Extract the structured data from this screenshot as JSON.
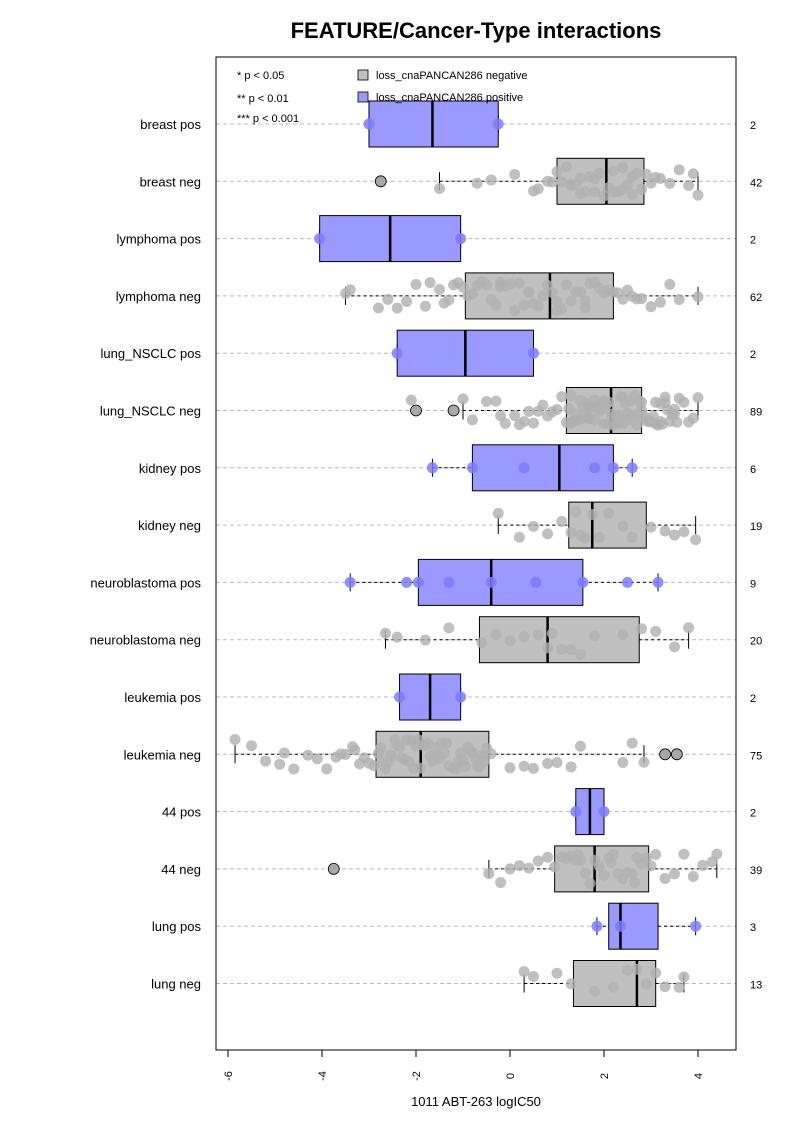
{
  "chart_data": {
    "type": "boxplot",
    "title": "FEATURE/Cancer-Type interactions",
    "xlabel": "1011 ABT-263 logIC50",
    "xlim": [
      -6.3,
      4.8
    ],
    "x_ticks": [
      "-6",
      "-4",
      "-2",
      "0",
      "2",
      "4"
    ],
    "x_tick_values": [
      -6,
      -4,
      -2,
      0,
      2,
      4
    ],
    "grid": "horizontal dashed",
    "significance_legend": [
      "* p < 0.05",
      "** p < 0.01",
      "*** p < 0.001"
    ],
    "legend": {
      "placement": "top",
      "entries": [
        {
          "label": "loss_cnaPANCAN286 negative",
          "color": "#c0c0c0"
        },
        {
          "label": "loss_cnaPANCAN286 positive",
          "color": "#9999ff"
        }
      ]
    },
    "colors": {
      "negative_box": "#c0c0c0",
      "positive_box": "#9999ff",
      "negative_point": "#b0b0b0",
      "positive_point": "#7b7bff",
      "grid": "#bbbbbb"
    },
    "groups": [
      {
        "label": "breast pos",
        "status": "pos",
        "n": "2",
        "q1": -3.0,
        "median": -1.65,
        "q3": -0.25,
        "wlo": -3.0,
        "whi": -0.25,
        "points": [
          -3.0,
          -0.25
        ],
        "outliers": []
      },
      {
        "label": "breast neg",
        "status": "neg",
        "n": "42",
        "q1": 1.0,
        "median": 2.05,
        "q3": 2.85,
        "wlo": -1.5,
        "whi": 4.0,
        "points": [
          -1.5,
          -0.7,
          -0.4,
          0.1,
          0.5,
          0.6,
          0.8,
          0.9,
          1.1,
          1.2,
          1.3,
          1.4,
          1.5,
          1.6,
          1.7,
          1.8,
          1.9,
          2.0,
          2.1,
          2.2,
          2.3,
          2.4,
          2.5,
          2.6,
          2.7,
          2.8,
          2.2,
          1.5,
          1.0,
          2.6,
          3.0,
          3.1,
          3.2,
          3.4,
          3.6,
          3.8,
          4.0,
          3.9,
          2.9,
          2.4,
          1.8,
          1.3
        ],
        "outliers": [
          -2.75
        ]
      },
      {
        "label": "lymphoma pos",
        "status": "pos",
        "n": "2",
        "q1": -4.05,
        "median": -2.55,
        "q3": -1.05,
        "wlo": -4.05,
        "whi": -1.05,
        "points": [
          -4.05,
          -1.05
        ],
        "outliers": []
      },
      {
        "label": "lymphoma neg",
        "status": "neg",
        "n": "62",
        "q1": -0.95,
        "median": 0.85,
        "q3": 2.2,
        "wlo": -3.5,
        "whi": 4.0,
        "points": [
          -3.5,
          -3.4,
          -2.8,
          -2.6,
          -2.4,
          -2.2,
          -2.0,
          -1.8,
          -1.7,
          -1.5,
          -1.4,
          -1.3,
          -1.2,
          -1.1,
          -1.0,
          -0.9,
          -0.8,
          -0.7,
          -0.6,
          -0.5,
          -0.4,
          -0.3,
          -0.2,
          -0.1,
          0.0,
          0.1,
          0.2,
          0.3,
          0.4,
          0.5,
          0.6,
          0.7,
          0.8,
          0.9,
          1.0,
          1.1,
          1.2,
          1.3,
          1.4,
          1.5,
          1.6,
          1.7,
          1.8,
          1.9,
          2.0,
          2.1,
          2.2,
          2.3,
          2.4,
          2.5,
          2.6,
          2.7,
          2.8,
          3.0,
          3.2,
          3.4,
          3.6,
          4.0,
          1.0,
          0.4,
          -0.2,
          1.6
        ],
        "outliers": []
      },
      {
        "label": "lung_NSCLC pos",
        "status": "pos",
        "n": "2",
        "q1": -2.4,
        "median": -0.95,
        "q3": 0.5,
        "wlo": -2.4,
        "whi": 0.5,
        "points": [
          -2.4,
          0.5
        ],
        "outliers": []
      },
      {
        "label": "lung_NSCLC neg",
        "status": "neg",
        "n": "89",
        "q1": 1.2,
        "median": 2.15,
        "q3": 2.8,
        "wlo": -1.0,
        "whi": 4.0,
        "points": [
          -2.1,
          -1.0,
          -0.8,
          -0.5,
          -0.3,
          -0.2,
          -0.1,
          0.1,
          0.2,
          0.3,
          0.4,
          0.5,
          0.6,
          0.7,
          0.8,
          0.9,
          1.0,
          1.1,
          1.2,
          1.3,
          1.4,
          1.5,
          1.6,
          1.7,
          1.8,
          1.9,
          2.0,
          2.1,
          2.2,
          2.3,
          2.4,
          2.5,
          2.6,
          2.7,
          2.8,
          2.9,
          3.0,
          3.1,
          3.2,
          3.3,
          3.4,
          3.5,
          3.6,
          3.7,
          3.8,
          3.9,
          4.0,
          1.25,
          1.35,
          1.45,
          1.55,
          1.65,
          1.75,
          1.85,
          1.95,
          2.05,
          2.15,
          2.25,
          2.35,
          2.45,
          2.55,
          2.65,
          2.75,
          2.85,
          2.95,
          3.05,
          3.15,
          3.25,
          3.35,
          3.45,
          3.55,
          1.3,
          1.5,
          1.7,
          1.9,
          2.1,
          2.3,
          2.5,
          2.7,
          2.9,
          3.1,
          3.3,
          3.5,
          1.6,
          2.0,
          2.4,
          2.8,
          3.2,
          1.8
        ],
        "outliers": [
          -2.0,
          -1.2
        ]
      },
      {
        "label": "kidney pos",
        "status": "pos",
        "n": "6",
        "q1": -0.8,
        "median": 1.05,
        "q3": 2.2,
        "wlo": -1.65,
        "whi": 2.6,
        "points": [
          -1.65,
          -0.8,
          0.3,
          1.8,
          2.2,
          2.6
        ],
        "outliers": []
      },
      {
        "label": "kidney neg",
        "status": "neg",
        "n": "19",
        "q1": 1.25,
        "median": 1.75,
        "q3": 2.9,
        "wlo": -0.25,
        "whi": 3.95,
        "points": [
          -0.25,
          0.2,
          0.5,
          0.8,
          1.1,
          1.3,
          1.4,
          1.5,
          1.6,
          1.75,
          1.9,
          2.1,
          2.4,
          2.6,
          3.0,
          3.3,
          3.5,
          3.7,
          3.95
        ],
        "outliers": []
      },
      {
        "label": "neuroblastoma pos",
        "status": "pos",
        "n": "9",
        "q1": -1.95,
        "median": -0.4,
        "q3": 1.55,
        "wlo": -3.4,
        "whi": 3.15,
        "points": [
          -3.4,
          -2.2,
          -1.95,
          -1.3,
          -0.4,
          0.55,
          1.55,
          2.5,
          3.15
        ],
        "outliers": []
      },
      {
        "label": "neuroblastoma neg",
        "status": "neg",
        "n": "20",
        "q1": -0.65,
        "median": 0.8,
        "q3": 2.75,
        "wlo": -2.65,
        "whi": 3.8,
        "points": [
          -2.65,
          -2.4,
          -1.8,
          -1.3,
          -0.6,
          -0.3,
          0.0,
          0.3,
          0.6,
          0.8,
          0.9,
          1.1,
          1.3,
          1.5,
          1.8,
          2.4,
          2.8,
          3.1,
          3.5,
          3.8
        ],
        "outliers": []
      },
      {
        "label": "leukemia pos",
        "status": "pos",
        "n": "2",
        "q1": -2.35,
        "median": -1.7,
        "q3": -1.05,
        "wlo": -2.35,
        "whi": -1.05,
        "points": [
          -2.35,
          -1.05
        ],
        "outliers": []
      },
      {
        "label": "leukemia neg",
        "status": "neg",
        "n": "75",
        "q1": -2.85,
        "median": -1.9,
        "q3": -0.45,
        "wlo": -5.85,
        "whi": 2.85,
        "points": [
          -5.85,
          -5.5,
          -5.2,
          -4.9,
          -4.6,
          -4.3,
          -4.1,
          -3.9,
          -3.7,
          -3.5,
          -3.3,
          -3.2,
          -3.1,
          -3.0,
          -2.9,
          -2.8,
          -2.7,
          -2.6,
          -2.5,
          -2.4,
          -2.3,
          -2.2,
          -2.1,
          -2.0,
          -1.9,
          -1.8,
          -1.7,
          -1.6,
          -1.5,
          -1.4,
          -1.3,
          -1.2,
          -1.1,
          -1.0,
          -0.9,
          -0.8,
          -0.7,
          -0.6,
          -0.5,
          -0.4,
          0.0,
          0.3,
          0.5,
          0.8,
          1.0,
          1.3,
          1.5,
          2.4,
          2.6,
          2.85,
          -2.75,
          -2.55,
          -2.35,
          -2.15,
          -1.95,
          -1.75,
          -1.55,
          -1.35,
          -1.15,
          -0.95,
          -0.75,
          -0.55,
          -2.65,
          -2.25,
          -1.85,
          -1.45,
          -1.05,
          -0.65,
          -2.45,
          -1.65,
          -0.85,
          -3.35,
          -3.6,
          -4.8,
          -2.05
        ],
        "outliers": [
          3.3,
          3.55
        ]
      },
      {
        "label": "44 pos",
        "status": "pos",
        "n": "2",
        "q1": 1.4,
        "median": 1.7,
        "q3": 2.0,
        "wlo": 1.4,
        "whi": 2.0,
        "points": [
          1.4,
          2.0
        ],
        "outliers": []
      },
      {
        "label": "44 neg",
        "status": "neg",
        "n": "39",
        "q1": 0.95,
        "median": 1.8,
        "q3": 2.95,
        "wlo": -0.45,
        "whi": 4.4,
        "points": [
          -0.45,
          -0.2,
          0.0,
          0.2,
          0.4,
          0.6,
          0.8,
          0.95,
          1.1,
          1.2,
          1.3,
          1.4,
          1.5,
          1.6,
          1.7,
          1.8,
          1.9,
          2.0,
          2.1,
          2.2,
          2.3,
          2.4,
          2.5,
          2.6,
          2.7,
          2.8,
          2.9,
          3.0,
          3.1,
          3.3,
          3.5,
          3.7,
          3.9,
          4.1,
          4.3,
          4.4,
          1.45,
          2.15,
          2.65
        ],
        "outliers": [
          -3.75
        ]
      },
      {
        "label": "lung pos",
        "status": "pos",
        "n": "3",
        "q1": 2.1,
        "median": 2.35,
        "q3": 3.15,
        "wlo": 1.85,
        "whi": 3.95,
        "points": [
          1.85,
          2.35,
          3.95
        ],
        "outliers": []
      },
      {
        "label": "lung neg",
        "status": "neg",
        "n": "13",
        "q1": 1.35,
        "median": 2.7,
        "q3": 3.1,
        "wlo": 0.3,
        "whi": 3.7,
        "points": [
          0.3,
          0.5,
          1.0,
          1.3,
          1.8,
          2.2,
          2.5,
          2.7,
          2.9,
          3.1,
          3.3,
          3.6,
          3.7
        ],
        "outliers": []
      }
    ]
  }
}
